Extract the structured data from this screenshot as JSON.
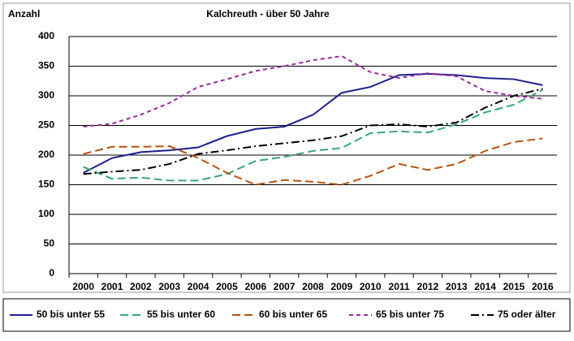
{
  "chart_data": {
    "type": "line",
    "title": "Kalchreuth  - über 50 Jahre",
    "y_label": "Anzahl",
    "categories": [
      "2000",
      "2001",
      "2002",
      "2003",
      "2004",
      "2005",
      "2006",
      "2007",
      "2008",
      "2009",
      "2010",
      "2011",
      "2012",
      "2013",
      "2014",
      "2015",
      "2016"
    ],
    "series": [
      {
        "name": "50 bis unter 55",
        "color": "#1f1f8f",
        "dash": "",
        "values": [
          170,
          195,
          205,
          208,
          213,
          232,
          244,
          248,
          268,
          305,
          315,
          335,
          337,
          335,
          330,
          328,
          318
        ]
      },
      {
        "name": "55 bis unter 60",
        "color": "#3aa57a",
        "dash": "10 5",
        "values": [
          180,
          160,
          162,
          157,
          157,
          168,
          190,
          197,
          207,
          212,
          237,
          240,
          238,
          252,
          272,
          285,
          310
        ]
      },
      {
        "name": "60 bis unter 65",
        "color": "#b5520f",
        "dash": "10 5",
        "values": [
          202,
          214,
          214,
          215,
          195,
          170,
          150,
          158,
          155,
          150,
          165,
          185,
          175,
          185,
          207,
          222,
          228
        ]
      },
      {
        "name": "65 bis unter 75",
        "color": "#9b2a9b",
        "dash": "5 4",
        "values": [
          248,
          253,
          268,
          288,
          315,
          328,
          342,
          350,
          360,
          367,
          340,
          330,
          338,
          333,
          308,
          300,
          295
        ]
      },
      {
        "name": "75 oder älter",
        "color": "#000000",
        "dash": "10 4 2 4",
        "values": [
          168,
          172,
          175,
          185,
          202,
          208,
          215,
          220,
          225,
          232,
          250,
          252,
          248,
          255,
          280,
          300,
          312
        ]
      }
    ],
    "ylim": [
      0,
      400
    ],
    "yticks": [
      0,
      50,
      100,
      150,
      200,
      250,
      300,
      350,
      400
    ],
    "grid": true
  }
}
